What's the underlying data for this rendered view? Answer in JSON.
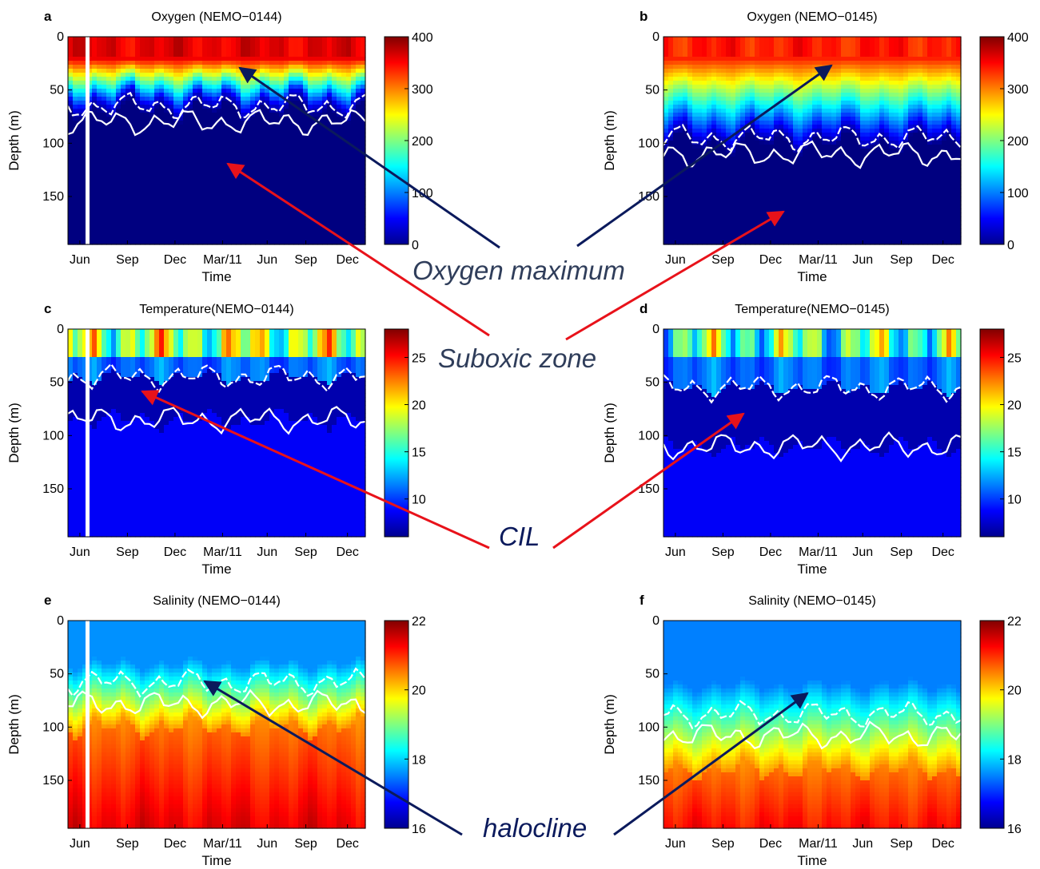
{
  "colors": {
    "oxygen_arrow": "#0b1a5c",
    "suboxic_arrow": "#e8121a",
    "cil_arrow": "#e8121a",
    "halocline_arrow": "#0b1a5c",
    "oxygen_text": "#2f3d5a",
    "suboxic_text": "#2f3d5a",
    "cil_text": "#0b1a5c",
    "halocline_text": "#0b1a5c",
    "contour": "#ffffff"
  },
  "annotations": {
    "oxygen_maximum": "Oxygen maximum",
    "suboxic_zone": "Suboxic zone",
    "cil": "CIL",
    "halocline": "halocline"
  },
  "chart_data": [
    {
      "type": "heatmap",
      "panel_label": "a",
      "title": "Oxygen (NEMO−0144)",
      "variable": "oxygen",
      "xlabel": "Time",
      "ylabel": "Depth (m)",
      "x_ticks": [
        "Jun",
        "Sep",
        "Dec",
        "Mar/11",
        "Jun",
        "Sep",
        "Dec"
      ],
      "y_ticks": [
        0,
        50,
        100,
        150
      ],
      "ylim": [
        0,
        195
      ],
      "colorbar": {
        "ticks": [
          0,
          100,
          200,
          300,
          400
        ],
        "range": [
          0,
          400
        ],
        "colormap": "jet"
      },
      "profile": {
        "surface_value": 360,
        "boundary_depth_m": 60,
        "deep_value": 0
      }
    },
    {
      "type": "heatmap",
      "panel_label": "b",
      "title": "Oxygen (NEMO−0145)",
      "variable": "oxygen",
      "xlabel": "Time",
      "ylabel": "Depth (m)",
      "x_ticks": [
        "Jun",
        "Sep",
        "Dec",
        "Mar/11",
        "Jun",
        "Sep",
        "Dec"
      ],
      "y_ticks": [
        0,
        50,
        100,
        150
      ],
      "ylim": [
        0,
        195
      ],
      "colorbar": {
        "ticks": [
          0,
          100,
          200,
          300,
          400
        ],
        "range": [
          0,
          400
        ],
        "colormap": "jet"
      },
      "profile": {
        "surface_value": 340,
        "boundary_depth_m": 90,
        "deep_value": 0
      }
    },
    {
      "type": "heatmap",
      "panel_label": "c",
      "title": "Temperature(NEMO−0144)",
      "variable": "temperature",
      "xlabel": "Time",
      "ylabel": "Depth (m)",
      "x_ticks": [
        "Jun",
        "Sep",
        "Dec",
        "Mar/11",
        "Jun",
        "Sep",
        "Dec"
      ],
      "y_ticks": [
        0,
        50,
        100,
        150
      ],
      "ylim": [
        0,
        195
      ],
      "colorbar": {
        "ticks": [
          10,
          15,
          20,
          25
        ],
        "range": [
          6,
          28
        ],
        "colormap": "jet"
      },
      "profile": {
        "surface_value": 18,
        "cil_top_m": 45,
        "cil_bottom_m": 85,
        "cil_value": 7,
        "deep_value": 8.6
      }
    },
    {
      "type": "heatmap",
      "panel_label": "d",
      "title": "Temperature(NEMO−0145)",
      "variable": "temperature",
      "xlabel": "Time",
      "ylabel": "Depth (m)",
      "x_ticks": [
        "Jun",
        "Sep",
        "Dec",
        "Mar/11",
        "Jun",
        "Sep",
        "Dec"
      ],
      "y_ticks": [
        0,
        50,
        100,
        150
      ],
      "ylim": [
        0,
        195
      ],
      "colorbar": {
        "ticks": [
          10,
          15,
          20,
          25
        ],
        "range": [
          6,
          28
        ],
        "colormap": "jet"
      },
      "profile": {
        "surface_value": 16,
        "cil_top_m": 55,
        "cil_bottom_m": 110,
        "cil_value": 7,
        "deep_value": 8.6
      }
    },
    {
      "type": "heatmap",
      "panel_label": "e",
      "title": "Salinity (NEMO−0144)",
      "variable": "salinity",
      "xlabel": "Time",
      "ylabel": "Depth (m)",
      "x_ticks": [
        "Jun",
        "Sep",
        "Dec",
        "Mar/11",
        "Jun",
        "Sep",
        "Dec"
      ],
      "y_ticks": [
        0,
        50,
        100,
        150
      ],
      "ylim": [
        0,
        195
      ],
      "colorbar": {
        "ticks": [
          16,
          18,
          20,
          22
        ],
        "range": [
          16,
          22
        ],
        "colormap": "jet"
      },
      "profile": {
        "surface_value": 17.6,
        "halocline_top_m": 40,
        "halocline_bottom_m": 100,
        "deep_value": 21.4
      }
    },
    {
      "type": "heatmap",
      "panel_label": "f",
      "title": "Salinity (NEMO−0145)",
      "variable": "salinity",
      "xlabel": "Time",
      "ylabel": "Depth (m)",
      "x_ticks": [
        "Jun",
        "Sep",
        "Dec",
        "Mar/11",
        "Jun",
        "Sep",
        "Dec"
      ],
      "y_ticks": [
        0,
        50,
        100,
        150
      ],
      "ylim": [
        0,
        195
      ],
      "colorbar": {
        "ticks": [
          16,
          18,
          20,
          22
        ],
        "range": [
          16,
          22
        ],
        "colormap": "jet"
      },
      "profile": {
        "surface_value": 17.5,
        "halocline_top_m": 60,
        "halocline_bottom_m": 140,
        "deep_value": 21.2
      }
    }
  ]
}
